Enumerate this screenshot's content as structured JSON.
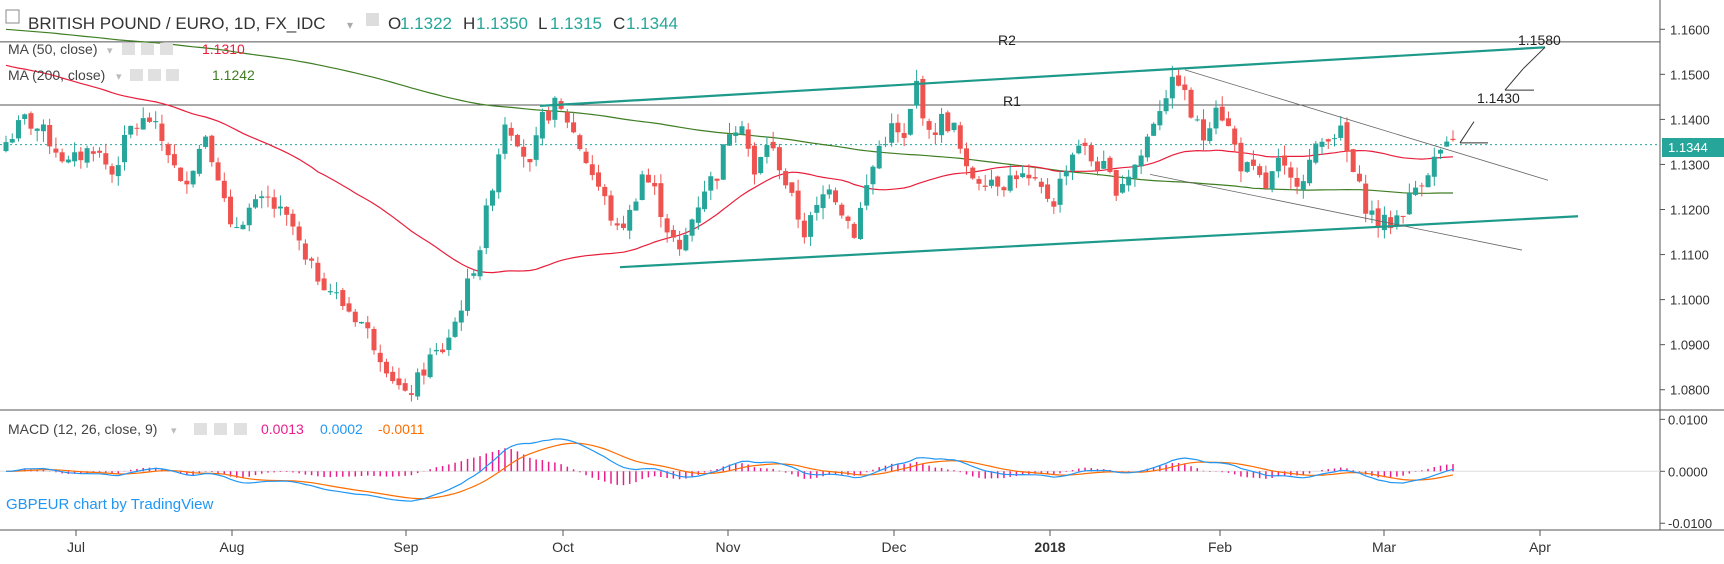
{
  "header": {
    "symbol": "BRITISH POUND / EURO, 1D, FX_IDC",
    "o_label": "O",
    "o_value": "1.1322",
    "h_label": "H",
    "h_value": "1.1350",
    "l_label": "L",
    "l_value": "1.1315",
    "c_label": "C",
    "c_value": "1.1344"
  },
  "indicators": {
    "ma50": {
      "label": "MA (50, close)",
      "value": "1.1310",
      "color": "#e91e3b"
    },
    "ma200": {
      "label": "MA (200, close)",
      "value": "1.1242",
      "color": "#3f7e24"
    },
    "macd": {
      "label": "MACD (12, 26, close, 9)",
      "hist": "0.0013",
      "macd": "0.0002",
      "signal": "-0.0011",
      "hist_color": "#e91e8c",
      "macd_color": "#2196f3",
      "signal_color": "#ff6d00"
    }
  },
  "watermark": "GBPEUR chart by TradingView",
  "annotations": {
    "r2": "R2",
    "r1": "R1",
    "target1": "1.1580",
    "target2": "1.1430"
  },
  "last_price": "1.1344",
  "colors": {
    "up": "#26a69a",
    "down": "#ef5350",
    "teal_line": "#1e9a8a"
  },
  "chart_data": {
    "type": "candlestick",
    "x_labels": [
      "Jul",
      "Aug",
      "Sep",
      "Oct",
      "Nov",
      "Dec",
      "2018",
      "Feb",
      "Mar",
      "Apr"
    ],
    "price_ticks": [
      "1.1600",
      "1.1500",
      "1.1400",
      "1.1300",
      "1.1200",
      "1.1100",
      "1.1000",
      "1.0900",
      "1.0800"
    ],
    "price_range": [
      1.0755,
      1.1665
    ],
    "macd_ticks": [
      "0.0100",
      "0.0000",
      "-0.0100"
    ],
    "macd_range": [
      -0.0113,
      0.0118
    ],
    "horizontal_levels": [
      {
        "name": "R2",
        "price": 1.1572
      },
      {
        "name": "R1",
        "price": 1.1432
      }
    ],
    "price_curve": [
      [
        0,
        1.135
      ],
      [
        3,
        1.14
      ],
      [
        6,
        1.137
      ],
      [
        10,
        1.13
      ],
      [
        14,
        1.134
      ],
      [
        17,
        1.128
      ],
      [
        20,
        1.138
      ],
      [
        23,
        1.14
      ],
      [
        26,
        1.133
      ],
      [
        28,
        1.125
      ],
      [
        30,
        1.13
      ],
      [
        32,
        1.137
      ],
      [
        34,
        1.128
      ],
      [
        36,
        1.115
      ],
      [
        39,
        1.12
      ],
      [
        42,
        1.122
      ],
      [
        44,
        1.119
      ],
      [
        46,
        1.116
      ],
      [
        48,
        1.108
      ],
      [
        51,
        1.104
      ],
      [
        54,
        1.099
      ],
      [
        57,
        1.095
      ],
      [
        60,
        1.088
      ],
      [
        62,
        1.083
      ],
      [
        64,
        1.078
      ],
      [
        66,
        1.082
      ],
      [
        68,
        1.087
      ],
      [
        70,
        1.089
      ],
      [
        72,
        1.095
      ],
      [
        74,
        1.103
      ],
      [
        76,
        1.112
      ],
      [
        78,
        1.126
      ],
      [
        80,
        1.14
      ],
      [
        82,
        1.136
      ],
      [
        84,
        1.129
      ],
      [
        86,
        1.14
      ],
      [
        88,
        1.143
      ],
      [
        90,
        1.14
      ],
      [
        92,
        1.134
      ],
      [
        94,
        1.128
      ],
      [
        96,
        1.122
      ],
      [
        98,
        1.115
      ],
      [
        100,
        1.119
      ],
      [
        102,
        1.128
      ],
      [
        104,
        1.124
      ],
      [
        106,
        1.116
      ],
      [
        108,
        1.11
      ],
      [
        110,
        1.118
      ],
      [
        112,
        1.125
      ],
      [
        114,
        1.128
      ],
      [
        116,
        1.138
      ],
      [
        118,
        1.14
      ],
      [
        120,
        1.127
      ],
      [
        122,
        1.135
      ],
      [
        124,
        1.13
      ],
      [
        126,
        1.122
      ],
      [
        128,
        1.115
      ],
      [
        130,
        1.12
      ],
      [
        132,
        1.126
      ],
      [
        134,
        1.12
      ],
      [
        136,
        1.115
      ],
      [
        138,
        1.125
      ],
      [
        140,
        1.134
      ],
      [
        142,
        1.138
      ],
      [
        144,
        1.135
      ],
      [
        146,
        1.148
      ],
      [
        148,
        1.136
      ],
      [
        150,
        1.14
      ],
      [
        152,
        1.138
      ],
      [
        154,
        1.128
      ],
      [
        156,
        1.127
      ],
      [
        158,
        1.127
      ],
      [
        160,
        1.126
      ],
      [
        162,
        1.128
      ],
      [
        164,
        1.126
      ],
      [
        166,
        1.124
      ],
      [
        168,
        1.122
      ],
      [
        170,
        1.13
      ],
      [
        172,
        1.135
      ],
      [
        174,
        1.131
      ],
      [
        176,
        1.129
      ],
      [
        178,
        1.125
      ],
      [
        180,
        1.128
      ],
      [
        182,
        1.132
      ],
      [
        184,
        1.14
      ],
      [
        186,
        1.146
      ],
      [
        188,
        1.149
      ],
      [
        190,
        1.141
      ],
      [
        192,
        1.136
      ],
      [
        194,
        1.144
      ],
      [
        196,
        1.138
      ],
      [
        198,
        1.13
      ],
      [
        200,
        1.128
      ],
      [
        202,
        1.125
      ],
      [
        204,
        1.13
      ],
      [
        206,
        1.126
      ],
      [
        208,
        1.128
      ],
      [
        210,
        1.133
      ],
      [
        212,
        1.137
      ],
      [
        214,
        1.137
      ],
      [
        216,
        1.128
      ],
      [
        218,
        1.121
      ],
      [
        220,
        1.117
      ],
      [
        222,
        1.117
      ],
      [
        224,
        1.12
      ],
      [
        226,
        1.125
      ],
      [
        228,
        1.129
      ],
      [
        230,
        1.133
      ],
      [
        232,
        1.134
      ]
    ]
  }
}
